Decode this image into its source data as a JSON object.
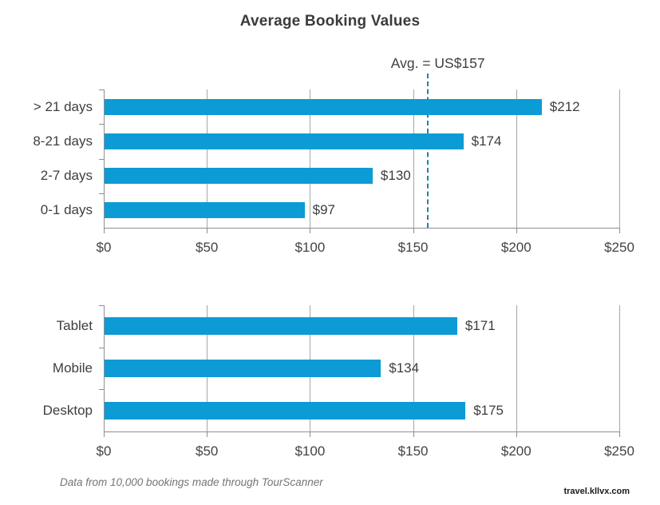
{
  "header": {
    "title": "Average Booking Values"
  },
  "colors": {
    "bar": "#0C9BD5",
    "avg_line": "#1786A3",
    "grid": "#A6A6A6",
    "axis": "#8E8E8E",
    "text": "#3C3C3C"
  },
  "chart_data": [
    {
      "type": "bar",
      "orientation": "horizontal",
      "title": "Average Booking Values",
      "categories": [
        "> 21 days",
        "8-21 days",
        "2-7 days",
        "0-1 days"
      ],
      "values": [
        212,
        174,
        130,
        97
      ],
      "value_labels": [
        "$212",
        "$174",
        "$130",
        "$97"
      ],
      "xlim": [
        0,
        250
      ],
      "x_tick_values": [
        0,
        50,
        100,
        150,
        200,
        250
      ],
      "x_tick_labels": [
        "$0",
        "$50",
        "$100",
        "$150",
        "$200",
        "$250"
      ],
      "grid": true,
      "legend": null,
      "annotation": {
        "label": "Avg. = US$157",
        "value": 157
      }
    },
    {
      "type": "bar",
      "orientation": "horizontal",
      "title": "",
      "categories": [
        "Tablet",
        "Mobile",
        "Desktop"
      ],
      "values": [
        171,
        134,
        175
      ],
      "value_labels": [
        "$171",
        "$134",
        "$175"
      ],
      "xlim": [
        0,
        250
      ],
      "x_tick_values": [
        0,
        50,
        100,
        150,
        200,
        250
      ],
      "x_tick_labels": [
        "$0",
        "$50",
        "$100",
        "$150",
        "$200",
        "$250"
      ],
      "grid": true,
      "legend": null
    }
  ],
  "footer": {
    "note": "Data from 10,000 bookings made through TourScanner",
    "watermark": "travel.kllvx.com"
  }
}
